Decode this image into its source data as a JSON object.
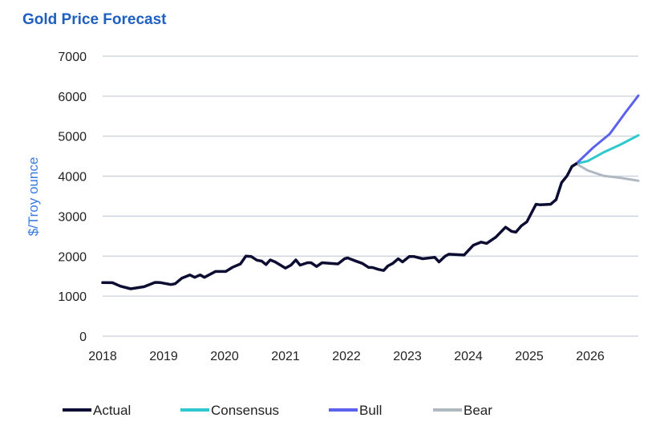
{
  "chart_data": {
    "type": "line",
    "title": "Gold Price Forecast",
    "xlabel": "",
    "ylabel": "$/Troy ounce",
    "xlim": [
      2018,
      2026.8
    ],
    "ylim": [
      0,
      7000
    ],
    "yticks": [
      0,
      1000,
      2000,
      3000,
      4000,
      5000,
      6000,
      7000
    ],
    "xticks": [
      2018,
      2019,
      2020,
      2021,
      2022,
      2023,
      2024,
      2025,
      2026
    ],
    "grid": "horizontal",
    "legend": "bottom",
    "series": [
      {
        "name": "Actual",
        "color": "#0d0d33",
        "points": [
          [
            2018.0,
            1337
          ],
          [
            2018.16,
            1335
          ],
          [
            2018.29,
            1250
          ],
          [
            2018.46,
            1183
          ],
          [
            2018.68,
            1236
          ],
          [
            2018.86,
            1343
          ],
          [
            2018.95,
            1337
          ],
          [
            2019.12,
            1290
          ],
          [
            2019.19,
            1310
          ],
          [
            2019.3,
            1450
          ],
          [
            2019.43,
            1530
          ],
          [
            2019.51,
            1470
          ],
          [
            2019.6,
            1530
          ],
          [
            2019.67,
            1470
          ],
          [
            2019.85,
            1617
          ],
          [
            2020.02,
            1617
          ],
          [
            2020.13,
            1720
          ],
          [
            2020.26,
            1805
          ],
          [
            2020.35,
            2000
          ],
          [
            2020.44,
            1990
          ],
          [
            2020.53,
            1900
          ],
          [
            2020.61,
            1875
          ],
          [
            2020.68,
            1790
          ],
          [
            2020.75,
            1905
          ],
          [
            2020.83,
            1855
          ],
          [
            2021.0,
            1700
          ],
          [
            2021.09,
            1775
          ],
          [
            2021.17,
            1905
          ],
          [
            2021.24,
            1775
          ],
          [
            2021.36,
            1835
          ],
          [
            2021.42,
            1835
          ],
          [
            2021.51,
            1740
          ],
          [
            2021.6,
            1835
          ],
          [
            2021.86,
            1805
          ],
          [
            2021.97,
            1935
          ],
          [
            2022.02,
            1955
          ],
          [
            2022.13,
            1890
          ],
          [
            2022.26,
            1820
          ],
          [
            2022.36,
            1720
          ],
          [
            2022.43,
            1715
          ],
          [
            2022.52,
            1670
          ],
          [
            2022.61,
            1640
          ],
          [
            2022.68,
            1755
          ],
          [
            2022.76,
            1820
          ],
          [
            2022.85,
            1935
          ],
          [
            2022.92,
            1855
          ],
          [
            2023.03,
            1990
          ],
          [
            2023.11,
            1990
          ],
          [
            2023.25,
            1935
          ],
          [
            2023.45,
            1970
          ],
          [
            2023.52,
            1855
          ],
          [
            2023.62,
            2000
          ],
          [
            2023.68,
            2047
          ],
          [
            2023.93,
            2027
          ],
          [
            2024.08,
            2270
          ],
          [
            2024.21,
            2350
          ],
          [
            2024.3,
            2318
          ],
          [
            2024.45,
            2473
          ],
          [
            2024.61,
            2723
          ],
          [
            2024.71,
            2620
          ],
          [
            2024.78,
            2600
          ],
          [
            2024.87,
            2757
          ],
          [
            2024.96,
            2858
          ],
          [
            2025.11,
            3297
          ],
          [
            2025.18,
            3283
          ],
          [
            2025.35,
            3297
          ],
          [
            2025.44,
            3412
          ],
          [
            2025.53,
            3838
          ],
          [
            2025.62,
            4007
          ],
          [
            2025.7,
            4243
          ],
          [
            2025.77,
            4311
          ]
        ]
      },
      {
        "name": "Consensus",
        "color": "#2ec9cf",
        "points": [
          [
            2025.77,
            4311
          ],
          [
            2025.96,
            4378
          ],
          [
            2026.22,
            4595
          ],
          [
            2026.49,
            4784
          ],
          [
            2026.79,
            5020
          ]
        ]
      },
      {
        "name": "Bull",
        "color": "#5b63ee",
        "points": [
          [
            2025.77,
            4311
          ],
          [
            2026.05,
            4716
          ],
          [
            2026.32,
            5054
          ],
          [
            2026.58,
            5595
          ],
          [
            2026.79,
            6013
          ]
        ]
      },
      {
        "name": "Bear",
        "color": "#b0b8c2",
        "points": [
          [
            2025.77,
            4311
          ],
          [
            2025.96,
            4142
          ],
          [
            2026.22,
            4007
          ],
          [
            2026.49,
            3959
          ],
          [
            2026.79,
            3885
          ]
        ]
      }
    ]
  }
}
